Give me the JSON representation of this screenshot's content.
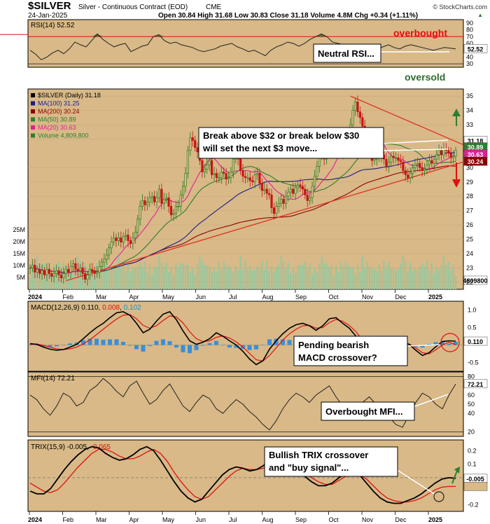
{
  "header": {
    "symbol": "$SILVER",
    "name": "Silver - Continuous Contract (EOD)",
    "exchange": "CME",
    "date": "24-Jan-2025",
    "watermark": "© StockCharts.com",
    "ohlc": "Open 30.84  High 31.68  Low 30.83  Close 31.18  Volume 4.8M  Chg +0.34 (+1.11%)",
    "ohlc_arrow": "▲"
  },
  "colors": {
    "bg": "#d8b987",
    "price": "#000000",
    "ma100": "#1c1c8c",
    "ma200": "#8b0000",
    "ma50": "#2e7d32",
    "ma20": "#e0209a",
    "volume": "#9cc69c",
    "trend": "#e03020",
    "macd_hist": "#3a8fd8",
    "rsi_fill": "#2f7a2f"
  },
  "chart_data": [
    {
      "type": "line",
      "name": "rsi",
      "title": "RSI(14) 52.52",
      "last": "52.52",
      "y_ticks": [
        "90",
        "80",
        "70",
        "60",
        "50",
        "40",
        "30"
      ],
      "ylim": [
        25,
        95
      ],
      "levels": [
        70,
        30
      ],
      "values": [
        50,
        44,
        36,
        40,
        46,
        50,
        45,
        52,
        62,
        58,
        55,
        64,
        74,
        66,
        60,
        55,
        58,
        60,
        48,
        52,
        56,
        58,
        70,
        73,
        64,
        60,
        62,
        58,
        56,
        54,
        50,
        48,
        50,
        52,
        56,
        58,
        60,
        55,
        52,
        48,
        50,
        46,
        42,
        50,
        55,
        58,
        62,
        60,
        56,
        60,
        66,
        70,
        74,
        70,
        62,
        60,
        58,
        55,
        52,
        46,
        44,
        48,
        52,
        55,
        58,
        54,
        52,
        56,
        58,
        56,
        54,
        52,
        50,
        52,
        54,
        53,
        52
      ],
      "annotations": [
        "overbought",
        "oversold",
        "Neutral RSI..."
      ]
    },
    {
      "type": "candlestick",
      "name": "price",
      "legend": [
        "$SILVER (Daily) 31.18",
        "MA(100) 31.25",
        "MA(200) 30.24",
        "MA(50) 30.89",
        "MA(20) 30.63",
        "Volume 4,809,800"
      ],
      "ylim": [
        21.5,
        35.5
      ],
      "y_ticks": [
        "35",
        "34",
        "33",
        "32",
        "30",
        "29",
        "28",
        "27",
        "26",
        "25",
        "24",
        "23",
        "22"
      ],
      "last_labels": [
        "31.18",
        "30.89",
        "30.63",
        "30.24"
      ],
      "x_labels": [
        "2024",
        "Feb",
        "Mar",
        "Apr",
        "May",
        "Jun",
        "Jul",
        "Aug",
        "Sep",
        "Oct",
        "Nov",
        "Dec",
        "2025"
      ],
      "closes": [
        23.0,
        23.2,
        22.7,
        22.9,
        22.6,
        22.8,
        22.5,
        22.9,
        22.6,
        22.4,
        22.6,
        22.8,
        22.5,
        22.3,
        22.6,
        22.9,
        22.7,
        23.1,
        23.3,
        22.9,
        22.8,
        23.0,
        22.6,
        22.2,
        22.5,
        22.9,
        22.8,
        22.6,
        22.7,
        23.1,
        23.4,
        23.6,
        23.9,
        24.4,
        24.8,
        25.1,
        24.9,
        25.1,
        24.8,
        25.2,
        25.3,
        24.9,
        24.7,
        25.1,
        25.5,
        26.4,
        27.3,
        27.7,
        27.4,
        27.6,
        27.9,
        28.0,
        27.6,
        27.9,
        28.5,
        27.5,
        27.8,
        27.9,
        27.3,
        26.7,
        26.8,
        27.3,
        27.3,
        28.1,
        28.7,
        29.6,
        31.2,
        32.1,
        31.9,
        31.4,
        31.1,
        30.5,
        29.7,
        29.9,
        30.2,
        30.5,
        29.5,
        29.6,
        29.3,
        29.3,
        29.7,
        29.6,
        29.2,
        29.3,
        29.7,
        30.6,
        31.0,
        30.6,
        29.8,
        29.4,
        29.3,
        29.3,
        29.1,
        29.0,
        29.5,
        29.6,
        28.9,
        28.4,
        28.5,
        28.2,
        28.1,
        27.2,
        26.8,
        27.3,
        27.5,
        27.8,
        27.5,
        28.0,
        28.3,
        28.5,
        28.2,
        28.6,
        28.8,
        28.7,
        28.5,
        28.1,
        27.7,
        27.9,
        28.7,
        29.4,
        30.1,
        30.9,
        30.8,
        30.6,
        31.2,
        31.5,
        31.2,
        31.4,
        31.9,
        31.6,
        31.1,
        31.0,
        31.4,
        32.0,
        33.0,
        34.0,
        34.6,
        33.9,
        33.5,
        32.9,
        32.2,
        31.5,
        31.1,
        30.5,
        30.6,
        30.7,
        30.8,
        30.9,
        30.6,
        30.1,
        30.4,
        30.8,
        30.7,
        30.7,
        30.5,
        30.4,
        29.8,
        29.5,
        29.3,
        29.6,
        30.0,
        30.2,
        30.3,
        30.0,
        29.8,
        29.9,
        30.2,
        30.5,
        30.3,
        30.6,
        30.9,
        31.2,
        30.9,
        31.3,
        31.2,
        31.0,
        30.7,
        30.8,
        31.2
      ],
      "annotation": "Break above $32 or break below $30\nwill set the next $3 move..."
    },
    {
      "type": "bar",
      "name": "volume",
      "y_ticks": [
        "25M",
        "20M",
        "15M",
        "10M",
        "5M"
      ],
      "ylim": [
        0,
        28
      ],
      "last": "4809800"
    },
    {
      "type": "line",
      "name": "macd",
      "title": "MACD(12,26,9) 0.110, 0.008, 0.102",
      "title_parts": [
        "MACD(12,26,9) 0.110, ",
        "0.008",
        ", ",
        "0.102"
      ],
      "last": "0.110",
      "y_ticks": [
        "1.0",
        "0.5",
        "-0.5"
      ],
      "ylim": [
        -0.75,
        1.25
      ],
      "macd": [
        0.04,
        0.02,
        -0.06,
        -0.12,
        -0.15,
        -0.13,
        -0.06,
        0.02,
        0.18,
        0.35,
        0.5,
        0.62,
        0.78,
        0.92,
        0.95,
        0.85,
        0.62,
        0.35,
        0.45,
        0.68,
        0.88,
        0.95,
        0.72,
        0.4,
        0.12,
        0.02,
        0.08,
        0.18,
        0.35,
        0.25,
        0.12,
        0.0,
        -0.18,
        -0.4,
        -0.56,
        -0.45,
        -0.12,
        0.12,
        0.32,
        0.48,
        0.58,
        0.62,
        0.55,
        0.42,
        0.55,
        0.75,
        0.78,
        0.62,
        0.48,
        0.25,
        -0.05,
        -0.28,
        -0.35,
        -0.32,
        -0.15,
        0.0,
        0.08,
        0.02,
        -0.15,
        -0.3,
        -0.22,
        -0.05,
        0.1,
        0.12,
        0.11
      ],
      "signal": [
        0.02,
        0.03,
        -0.01,
        -0.06,
        -0.11,
        -0.13,
        -0.11,
        -0.06,
        0.03,
        0.15,
        0.3,
        0.45,
        0.6,
        0.74,
        0.85,
        0.87,
        0.75,
        0.56,
        0.48,
        0.55,
        0.7,
        0.83,
        0.8,
        0.63,
        0.38,
        0.18,
        0.1,
        0.12,
        0.22,
        0.26,
        0.2,
        0.09,
        -0.06,
        -0.24,
        -0.42,
        -0.46,
        -0.3,
        -0.08,
        0.14,
        0.32,
        0.45,
        0.55,
        0.56,
        0.48,
        0.5,
        0.64,
        0.73,
        0.68,
        0.56,
        0.38,
        0.14,
        -0.12,
        -0.28,
        -0.32,
        -0.22,
        -0.08,
        0.02,
        0.03,
        -0.08,
        -0.22,
        -0.25,
        -0.14,
        0.0,
        0.08,
        0.01
      ],
      "annotation": "Pending bearish\nMACD crossover?"
    },
    {
      "type": "line",
      "name": "mfi",
      "title": "MFI(14) 72.21",
      "last": "72.21",
      "y_ticks": [
        "80",
        "60",
        "50",
        "40",
        "20"
      ],
      "ylim": [
        15,
        85
      ],
      "values": [
        60,
        55,
        45,
        38,
        48,
        62,
        58,
        48,
        52,
        65,
        70,
        78,
        72,
        64,
        58,
        70,
        75,
        62,
        50,
        55,
        65,
        72,
        60,
        48,
        42,
        52,
        60,
        56,
        45,
        40,
        48,
        55,
        50,
        42,
        36,
        28,
        22,
        32,
        45,
        55,
        62,
        58,
        52,
        60,
        65,
        70,
        58,
        48,
        40,
        45,
        52,
        58,
        50,
        42,
        36,
        28,
        25,
        38,
        52,
        62,
        58,
        50,
        45,
        60,
        72
      ],
      "annotation": "Overbought MFI..."
    },
    {
      "type": "line",
      "name": "trix",
      "title": "TRIX(15,9) -0.005, -0.065",
      "title_parts": [
        "TRIX(15,9) -0.005, ",
        "-0.065"
      ],
      "last": "-0.005",
      "y_ticks": [
        "0.2",
        "0.1",
        "-0.2"
      ],
      "ylim": [
        -0.25,
        0.28
      ],
      "trix": [
        -0.1,
        -0.12,
        -0.12,
        -0.08,
        -0.01,
        0.06,
        0.12,
        0.17,
        0.21,
        0.23,
        0.22,
        0.18,
        0.15,
        0.13,
        0.14,
        0.17,
        0.21,
        0.23,
        0.2,
        0.13,
        0.05,
        -0.03,
        -0.1,
        -0.15,
        -0.18,
        -0.16,
        -0.1,
        -0.04,
        0.02,
        0.06,
        0.08,
        0.07,
        0.05,
        0.06,
        0.09,
        0.13,
        0.15,
        0.14,
        0.1,
        0.05,
        0.01,
        -0.03,
        -0.06,
        -0.06,
        -0.04,
        0.0,
        0.03,
        0.04,
        0.02,
        -0.04,
        -0.1,
        -0.15,
        -0.18,
        -0.19,
        -0.19,
        -0.17,
        -0.15,
        -0.12,
        -0.08,
        -0.04,
        -0.01,
        0.0,
        -0.005
      ],
      "signal": [
        -0.04,
        -0.07,
        -0.1,
        -0.11,
        -0.09,
        -0.04,
        0.02,
        0.08,
        0.13,
        0.18,
        0.21,
        0.21,
        0.19,
        0.16,
        0.14,
        0.14,
        0.16,
        0.19,
        0.21,
        0.18,
        0.12,
        0.04,
        -0.03,
        -0.09,
        -0.14,
        -0.16,
        -0.14,
        -0.09,
        -0.04,
        0.01,
        0.05,
        0.07,
        0.06,
        0.06,
        0.07,
        0.1,
        0.13,
        0.14,
        0.12,
        0.08,
        0.04,
        0.0,
        -0.03,
        -0.05,
        -0.05,
        -0.02,
        0.01,
        0.03,
        0.02,
        -0.01,
        -0.06,
        -0.11,
        -0.15,
        -0.17,
        -0.18,
        -0.18,
        -0.17,
        -0.15,
        -0.12,
        -0.09,
        -0.07,
        -0.065,
        -0.065
      ],
      "x_labels": [
        "2024",
        "Feb",
        "Mar",
        "Apr",
        "May",
        "Jun",
        "Jul",
        "Aug",
        "Sep",
        "Oct",
        "Nov",
        "Dec",
        "2025"
      ],
      "annotation": "Bullish TRIX crossover\nand \"buy signal\"..."
    }
  ]
}
